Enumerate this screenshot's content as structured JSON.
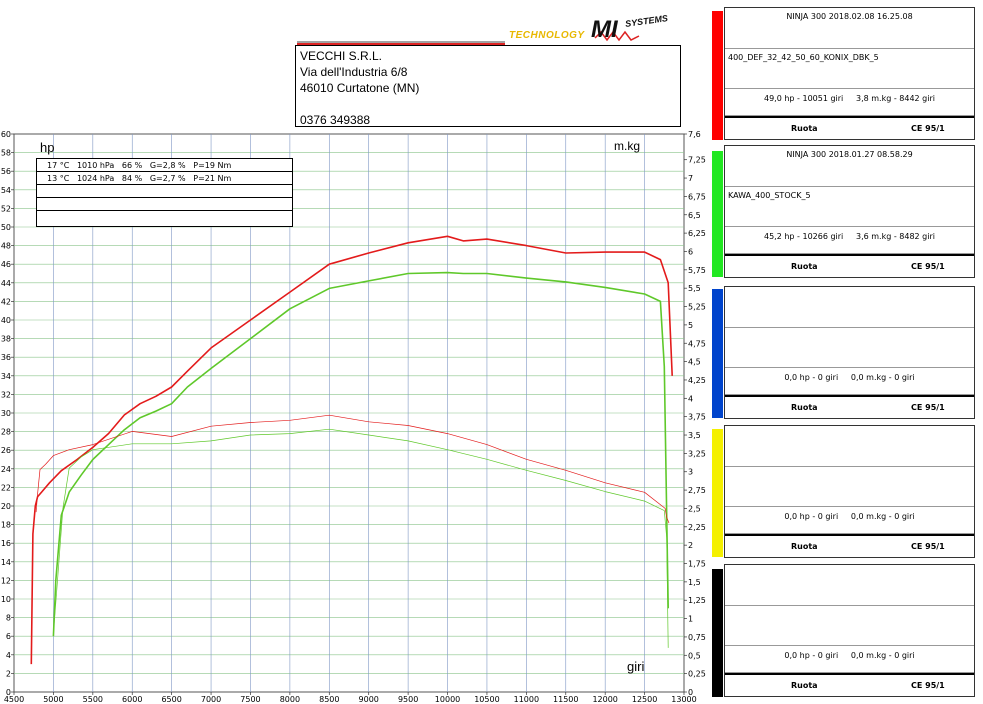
{
  "header": {
    "logo_text": "TECHNOLOGY",
    "logo_brand": "MI",
    "logo_systems": "SYSTEMS",
    "company": {
      "name": "VECCHI S.R.L.",
      "street": "Via dell'Industria 6/8",
      "city": "46010 Curtatone (MN)",
      "phone": "0376 349388"
    }
  },
  "chart_labels": {
    "left_unit": "hp",
    "right_unit": "m.kg",
    "x_unit": "giri"
  },
  "conditions": [
    "17 °C   1010 hPa   66 %   G=2,8 %   P=19 Nm",
    "13 °C   1024 hPa   84 %   G=2,7 %   P=21 Nm",
    "",
    "",
    ""
  ],
  "runs": [
    {
      "color": "#e31b1b",
      "bar_color": "#ff0000",
      "title": "NINJA 300    2018.02.08 16.25.08",
      "name": "400_DEF_32_42_50_60_KONIX_DBK_5",
      "result": "49,0 hp - 10051 giri     3,8 m.kg - 8442 giri",
      "mode": "Ruota",
      "std": "CE 95/1"
    },
    {
      "color": "#5fc82a",
      "bar_color": "#22e822",
      "title": "NINJA 300    2018.01.27 08.58.29",
      "name": "KAWA_400_STOCK_5",
      "result": "45,2 hp - 10266 giri     3,6 m.kg - 8482 giri",
      "mode": "Ruota",
      "std": "CE 95/1"
    },
    {
      "color": "#0044cc",
      "bar_color": "#0044cc",
      "title": "",
      "name": "",
      "result": "0,0 hp - 0 giri     0,0 m.kg - 0 giri",
      "mode": "Ruota",
      "std": "CE 95/1"
    },
    {
      "color": "#f0f000",
      "bar_color": "#f4f000",
      "title": "",
      "name": "",
      "result": "0,0 hp - 0 giri     0,0 m.kg - 0 giri",
      "mode": "Ruota",
      "std": "CE 95/1"
    },
    {
      "color": "#000000",
      "bar_color": "#000000",
      "title": "",
      "name": "",
      "result": "0,0 hp - 0 giri     0,0 m.kg - 0 giri",
      "mode": "Ruota",
      "std": "CE 95/1"
    }
  ],
  "chart_data": {
    "type": "line",
    "xlabel": "giri",
    "ylabel": "hp",
    "ylabel_right": "m.kg",
    "xlim": [
      4500,
      13000
    ],
    "ylim": [
      0,
      60
    ],
    "ylim_right": [
      0,
      7.6
    ],
    "x_ticks": [
      4500,
      5000,
      5500,
      6000,
      6500,
      7000,
      7500,
      8000,
      8500,
      9000,
      9500,
      10000,
      10500,
      11000,
      11500,
      12000,
      12500,
      13000
    ],
    "y_ticks": [
      0,
      2,
      4,
      6,
      8,
      10,
      12,
      14,
      16,
      18,
      20,
      22,
      24,
      26,
      28,
      30,
      32,
      34,
      36,
      38,
      40,
      42,
      44,
      46,
      48,
      50,
      52,
      54,
      56,
      58,
      60
    ],
    "y_right_ticks": [
      "0",
      "0,25",
      "0,5",
      "0,75",
      "1",
      "1,25",
      "1,5",
      "1,75",
      "2",
      "2,25",
      "2,5",
      "2,75",
      "3",
      "3,25",
      "3,5",
      "3,75",
      "4",
      "4,25",
      "4,5",
      "4,75",
      "5",
      "5,25",
      "5,5",
      "5,75",
      "6",
      "6,25",
      "6,5",
      "6,75",
      "7",
      "7,25",
      "7,6"
    ],
    "grid": true,
    "series": [
      {
        "name": "400_DEF_32_42_50_60_KONIX_DBK_5 hp",
        "axis": "left",
        "color": "#e31b1b",
        "width": 1.6,
        "x": [
          4720,
          4740,
          4770,
          4800,
          4850,
          4950,
          5100,
          5300,
          5500,
          5700,
          5900,
          6100,
          6300,
          6500,
          6700,
          7000,
          7500,
          8000,
          8500,
          9000,
          9500,
          10000,
          10200,
          10500,
          11000,
          11500,
          12000,
          12500,
          12700,
          12800,
          12850
        ],
        "y": [
          3,
          17,
          20,
          21,
          21.5,
          22.5,
          23.8,
          25,
          26.3,
          27.8,
          29.8,
          31,
          31.8,
          32.8,
          34.5,
          37,
          40,
          43,
          46,
          47.2,
          48.3,
          49,
          48.5,
          48.7,
          48,
          47.2,
          47.3,
          47.3,
          46.5,
          44,
          34
        ]
      },
      {
        "name": "KAWA_400_STOCK_5 hp",
        "axis": "left",
        "color": "#5fc82a",
        "width": 1.6,
        "x": [
          5000,
          5030,
          5100,
          5200,
          5350,
          5500,
          5700,
          5900,
          6100,
          6300,
          6500,
          6700,
          7000,
          7500,
          8000,
          8500,
          9000,
          9500,
          10000,
          10200,
          10500,
          11000,
          11500,
          12000,
          12500,
          12700,
          12750,
          12800
        ],
        "y": [
          6,
          12,
          19,
          21.5,
          23.3,
          25,
          26.6,
          28.2,
          29.5,
          30.2,
          31,
          32.8,
          34.8,
          38,
          41.2,
          43.4,
          44.2,
          45,
          45.1,
          45,
          45,
          44.5,
          44.1,
          43.5,
          42.8,
          42,
          35,
          9
        ]
      },
      {
        "name": "400_DEF_32_42_50_60_KONIX_DBK_5 m.kg",
        "axis": "right",
        "color": "#e31b1b",
        "width": 0.7,
        "x": [
          4780,
          4800,
          4830,
          4900,
          5000,
          5200,
          5500,
          6000,
          6500,
          7000,
          7500,
          8000,
          8500,
          9000,
          9500,
          10000,
          10500,
          11000,
          11500,
          12000,
          12500,
          12760,
          12780,
          12810
        ],
        "y": [
          2.45,
          2.7,
          3.03,
          3.1,
          3.22,
          3.3,
          3.37,
          3.55,
          3.48,
          3.62,
          3.67,
          3.7,
          3.77,
          3.68,
          3.63,
          3.52,
          3.37,
          3.17,
          3.02,
          2.85,
          2.72,
          2.5,
          2.38,
          2.3
        ]
      },
      {
        "name": "KAWA_400_STOCK_5 m.kg",
        "axis": "right",
        "color": "#5fc82a",
        "width": 0.7,
        "x": [
          5000,
          5050,
          5120,
          5200,
          5350,
          5500,
          6000,
          6500,
          7000,
          7500,
          8000,
          8500,
          9000,
          9500,
          10000,
          10500,
          11000,
          11500,
          12000,
          12500,
          12750,
          12780,
          12800
        ],
        "y": [
          0.8,
          1.5,
          2.5,
          3.05,
          3.2,
          3.3,
          3.38,
          3.38,
          3.42,
          3.5,
          3.52,
          3.58,
          3.5,
          3.42,
          3.3,
          3.17,
          3.02,
          2.88,
          2.73,
          2.6,
          2.47,
          2.1,
          0.6
        ]
      }
    ]
  }
}
